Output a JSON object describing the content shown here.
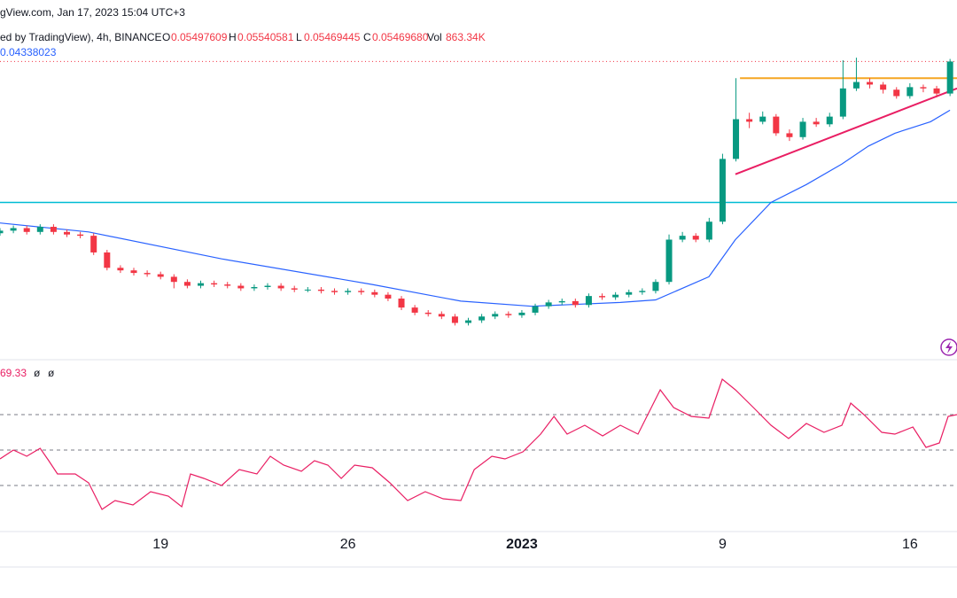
{
  "header": {
    "line1": "gView.com, Jan 17, 2023 15:04 UTC+3",
    "symbol": "ed by TradingView), 4h, BINANCE",
    "ohlc": [
      {
        "label": "O",
        "value": "0.05497609"
      },
      {
        "label": "H",
        "value": "0.05540581"
      },
      {
        "label": "L",
        "value": "0.05469445"
      },
      {
        "label": "C",
        "value": "0.05469680"
      }
    ],
    "vol_label": "Vol",
    "vol": "863.34K",
    "ma_value": "0.04338023",
    "rsi_value": "69.33",
    "rsi_flags": [
      "ø",
      "ø"
    ]
  },
  "chart_data": [
    {
      "type": "candlestick",
      "x": [
        -6,
        -5.5,
        -5,
        -4.5,
        -4,
        -3.5,
        -3,
        -2.5,
        -2,
        -1.5,
        -1,
        -0.5,
        0,
        0.5,
        1,
        1.5,
        2,
        2.5,
        3,
        3.5,
        4,
        4.5,
        5,
        5.5,
        6,
        6.5,
        7,
        7.5,
        8,
        8.5,
        9,
        9.5,
        10,
        10.5,
        11,
        11.5,
        12,
        12.5,
        13,
        13.5,
        14,
        14.5,
        15,
        15.5,
        16,
        16.5,
        17,
        17.5,
        18,
        18.5,
        19,
        19.5,
        20,
        20.5,
        21,
        21.5,
        22,
        22.5,
        23,
        23.5,
        24,
        24.5,
        25,
        25.5,
        26,
        26.5,
        27,
        27.5,
        28,
        28.5,
        29,
        29.5
      ],
      "open": [
        0.0413,
        0.0415,
        0.0417,
        0.0414,
        0.0418,
        0.0414,
        0.0412,
        0.0411,
        0.0398,
        0.0386,
        0.0384,
        0.0382,
        0.0381,
        0.0379,
        0.0375,
        0.0372,
        0.0374,
        0.0373,
        0.0372,
        0.037,
        0.0371,
        0.0372,
        0.037,
        0.0369,
        0.0369,
        0.0368,
        0.0367,
        0.0368,
        0.0367,
        0.0365,
        0.0362,
        0.0355,
        0.0351,
        0.035,
        0.0348,
        0.0343,
        0.0345,
        0.0348,
        0.035,
        0.0349,
        0.0351,
        0.0356,
        0.0359,
        0.036,
        0.0357,
        0.0364,
        0.0363,
        0.0365,
        0.0367,
        0.0368,
        0.0375,
        0.0408,
        0.0411,
        0.0408,
        0.0422,
        0.0471,
        0.0502,
        0.05,
        0.0504,
        0.0491,
        0.0488,
        0.05,
        0.0498,
        0.0504,
        0.0526,
        0.0531,
        0.0529,
        0.0525,
        0.052,
        0.0527,
        0.0526,
        0.0522
      ],
      "high": [
        0.0417,
        0.0419,
        0.0419,
        0.042,
        0.042,
        0.0416,
        0.0414,
        0.0413,
        0.04,
        0.0388,
        0.0386,
        0.0384,
        0.0383,
        0.0381,
        0.0377,
        0.0376,
        0.0376,
        0.0375,
        0.0374,
        0.0373,
        0.0374,
        0.0374,
        0.0372,
        0.0371,
        0.0371,
        0.037,
        0.037,
        0.037,
        0.0369,
        0.0367,
        0.0364,
        0.0357,
        0.0353,
        0.0352,
        0.035,
        0.0347,
        0.035,
        0.0352,
        0.0352,
        0.0353,
        0.0358,
        0.0361,
        0.0362,
        0.0362,
        0.0366,
        0.0366,
        0.0367,
        0.0369,
        0.037,
        0.0377,
        0.0412,
        0.0414,
        0.0413,
        0.0425,
        0.0475,
        0.0534,
        0.0507,
        0.0508,
        0.0506,
        0.0494,
        0.0503,
        0.0503,
        0.0507,
        0.0548,
        0.055,
        0.0534,
        0.0531,
        0.0527,
        0.053,
        0.0529,
        0.0528,
        0.0549
      ],
      "low": [
        0.0411,
        0.0413,
        0.0412,
        0.0412,
        0.0412,
        0.041,
        0.0409,
        0.0396,
        0.0384,
        0.0382,
        0.038,
        0.0379,
        0.0377,
        0.037,
        0.037,
        0.037,
        0.0371,
        0.037,
        0.0368,
        0.0368,
        0.0369,
        0.0368,
        0.0367,
        0.0367,
        0.0366,
        0.0365,
        0.0365,
        0.0365,
        0.0363,
        0.036,
        0.0353,
        0.0349,
        0.0348,
        0.0346,
        0.0341,
        0.0341,
        0.0343,
        0.0346,
        0.0347,
        0.0347,
        0.0349,
        0.0354,
        0.0357,
        0.0355,
        0.0355,
        0.0361,
        0.0361,
        0.0363,
        0.0365,
        0.0366,
        0.0373,
        0.0406,
        0.0406,
        0.0406,
        0.042,
        0.0469,
        0.0495,
        0.0498,
        0.0489,
        0.0485,
        0.0486,
        0.0496,
        0.0496,
        0.0502,
        0.0524,
        0.0526,
        0.0522,
        0.0518,
        0.0518,
        0.0523,
        0.0519,
        0.052
      ],
      "close": [
        0.0415,
        0.0417,
        0.0414,
        0.0418,
        0.0414,
        0.0412,
        0.0411,
        0.0398,
        0.0386,
        0.0384,
        0.0382,
        0.0381,
        0.0379,
        0.0375,
        0.0372,
        0.0374,
        0.0373,
        0.0372,
        0.037,
        0.0371,
        0.0372,
        0.037,
        0.0369,
        0.0369,
        0.0368,
        0.0367,
        0.0368,
        0.0367,
        0.0365,
        0.0362,
        0.0355,
        0.0351,
        0.035,
        0.0348,
        0.0343,
        0.0345,
        0.0348,
        0.035,
        0.0349,
        0.0351,
        0.0356,
        0.0359,
        0.036,
        0.0357,
        0.0364,
        0.0363,
        0.0365,
        0.0367,
        0.0368,
        0.0375,
        0.0408,
        0.0411,
        0.0408,
        0.0422,
        0.0471,
        0.0502,
        0.05,
        0.0504,
        0.0491,
        0.0488,
        0.05,
        0.0498,
        0.0504,
        0.0526,
        0.0531,
        0.0529,
        0.0525,
        0.052,
        0.0527,
        0.0526,
        0.0522,
        0.0547
      ],
      "up_color": "#089981",
      "down_color": "#f23645",
      "xlim": [
        -6,
        29.76
      ],
      "ylim": [
        0.0315,
        0.0595
      ],
      "xticks": [
        {
          "value": 0,
          "label": "19"
        },
        {
          "value": 7,
          "label": "26"
        },
        {
          "value": 13.5,
          "label": "2023"
        },
        {
          "value": 21,
          "label": "9"
        },
        {
          "value": 28,
          "label": "16"
        }
      ],
      "ma": {
        "color": "#2962ff",
        "x": [
          -6,
          -2.69,
          2.28,
          7.91,
          11.22,
          13.87,
          17.18,
          18.5,
          19.83,
          20.49,
          21.48,
          22.81,
          24.13,
          25.46,
          26.45,
          27.44,
          28.77,
          29.5
        ],
        "values": [
          0.0421,
          0.0414,
          0.0393,
          0.0373,
          0.036,
          0.0356,
          0.0359,
          0.0361,
          0.0373,
          0.0379,
          0.0408,
          0.0437,
          0.0451,
          0.0467,
          0.0481,
          0.0491,
          0.05,
          0.0509
        ]
      },
      "hline": {
        "value": 0.0437,
        "color": "#00bcd4"
      },
      "resistance": {
        "color": "#f5a623",
        "x": [
          21.65,
          29.76
        ],
        "values": [
          0.0534,
          0.0534
        ]
      },
      "trendline": {
        "color": "#e91e63",
        "x": [
          21.48,
          29.76
        ],
        "values": [
          0.0459,
          0.0526
        ]
      }
    },
    {
      "type": "line",
      "x": [
        -6,
        -5.5,
        -5,
        -4.5,
        -4.18,
        -3.85,
        -3.19,
        -2.69,
        -2.19,
        -1.7,
        -1.03,
        -0.37,
        0.29,
        0.79,
        1.12,
        1.62,
        2.28,
        2.94,
        3.6,
        4.1,
        4.6,
        5.26,
        5.75,
        6.25,
        6.75,
        7.25,
        7.91,
        8.57,
        9.23,
        9.89,
        10.56,
        11.22,
        11.72,
        12.38,
        12.87,
        13.54,
        14.2,
        14.7,
        15.19,
        15.85,
        16.52,
        17.18,
        17.84,
        18.67,
        19.17,
        19.83,
        20.49,
        20.99,
        21.48,
        22.15,
        22.81,
        23.47,
        24.13,
        24.79,
        25.46,
        25.79,
        26.28,
        26.95,
        27.44,
        28.11,
        28.6,
        29.1,
        29.43,
        29.76
      ],
      "values": [
        45,
        50,
        46.5,
        51,
        44,
        36.5,
        36.5,
        31.5,
        16.5,
        21.5,
        19,
        26.5,
        24,
        18,
        36.5,
        34,
        30,
        39,
        36.5,
        46.5,
        41.5,
        38,
        44,
        41.5,
        34,
        41.5,
        40,
        31.5,
        21.5,
        26.5,
        22.5,
        21.5,
        39,
        46.5,
        45,
        49,
        59,
        69,
        59,
        64,
        58,
        64,
        59,
        84,
        74,
        69,
        68,
        90,
        84,
        74,
        64,
        56.5,
        65,
        60,
        64,
        76.5,
        70,
        60,
        59,
        63,
        51.5,
        54,
        69,
        70
      ],
      "color": "#e91e63",
      "xlim": [
        -6,
        29.76
      ],
      "ylim": [
        4,
        100
      ],
      "levels": [
        70,
        50,
        30
      ]
    }
  ]
}
